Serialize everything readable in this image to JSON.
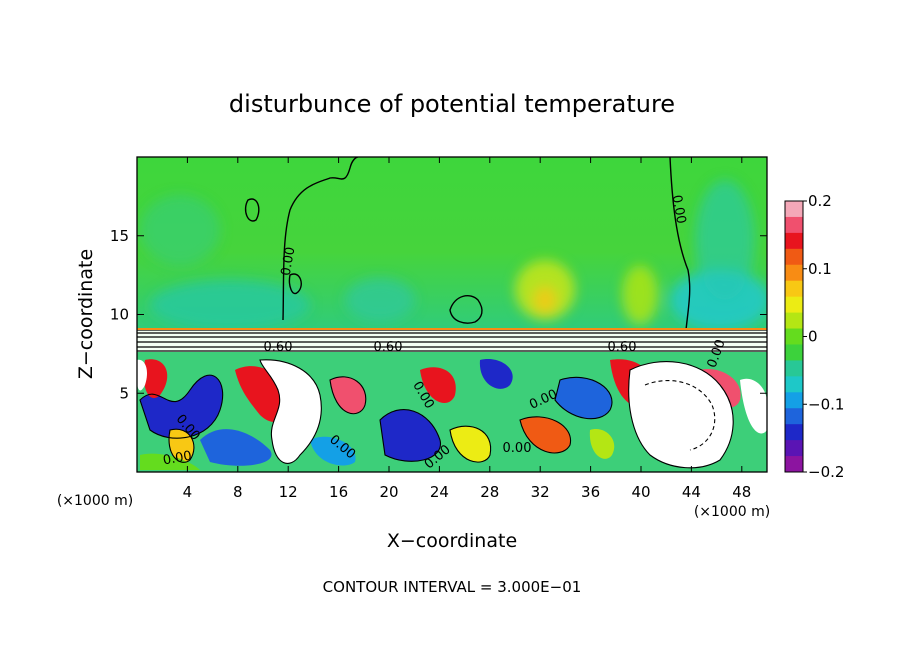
{
  "chart_data": {
    "type": "heatmap",
    "title": "disturbunce of potential temperature",
    "xlabel": "X−coordinate",
    "ylabel": "Z−coordinate",
    "x_unit_label": "(×1000 m)",
    "z_unit_label": "(×1000 m)",
    "footer": "CONTOUR INTERVAL = 3.000E−01",
    "xlim": [
      0,
      50
    ],
    "ylim": [
      0,
      20
    ],
    "x_ticks": [
      4,
      8,
      12,
      16,
      20,
      24,
      28,
      32,
      36,
      40,
      44,
      48
    ],
    "y_ticks": [
      5,
      10,
      15
    ],
    "colorbar": {
      "min": -0.2,
      "max": 0.2,
      "tick_values": [
        0.2,
        0.1,
        0,
        -0.1,
        -0.2
      ],
      "tick_labels": [
        "0.2",
        "0.1",
        "0",
        "−0.1",
        "−0.2"
      ],
      "colors": [
        "#f4a8b8",
        "#f0506e",
        "#e8141e",
        "#f05a14",
        "#f88c14",
        "#f8c814",
        "#ecec14",
        "#b4e614",
        "#64dc1e",
        "#3cd23c",
        "#28c896",
        "#1ec8c8",
        "#14a0e6",
        "#1e64dc",
        "#1e28c8",
        "#5a14b4",
        "#8c14a0"
      ]
    },
    "contour_labels": [
      "0.00",
      "0.60",
      "0.60",
      "0.60",
      "0.00",
      "0.00",
      "0.00",
      "0.00",
      "0.00",
      "0.00",
      "0.00",
      "0.00",
      "0.00"
    ],
    "regions": {
      "upper_layer_z": [
        9.2,
        20
      ],
      "upper_layer_value": 0.02,
      "lower_layer_z": [
        0,
        8
      ]
    }
  }
}
